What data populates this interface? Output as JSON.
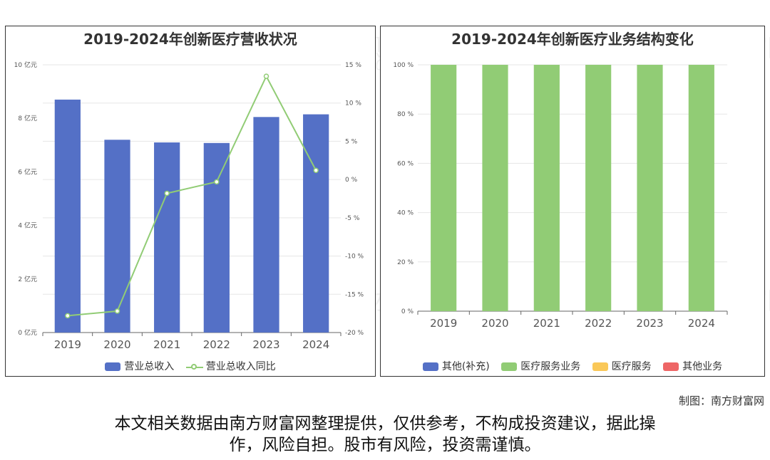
{
  "credit": "制图：南方财富网",
  "disclaimer": [
    "本文相关数据由南方财富网整理提供，仅供参考，不构成投资建议，据此操",
    "作，风险自担。股市有风险，投资需谨慎。"
  ],
  "watermark": {
    "cn": "南方财富网",
    "en": "southmoney.com"
  },
  "colors": {
    "blue": "#5470c6",
    "green": "#91cc75",
    "yellow": "#fac858",
    "red": "#ee6666"
  },
  "chart_data": [
    {
      "type": "bar",
      "title": "2019-2024年创新医疗营收状况",
      "categories": [
        "2019",
        "2020",
        "2021",
        "2022",
        "2023",
        "2024"
      ],
      "series": [
        {
          "name": "营业总收入",
          "type": "bar",
          "axis": "left",
          "values": [
            8.7,
            7.2,
            7.1,
            7.08,
            8.05,
            8.15
          ]
        },
        {
          "name": "营业总收入同比",
          "type": "line",
          "axis": "right",
          "values": [
            -17.8,
            -17.2,
            -1.8,
            -0.3,
            13.5,
            1.2
          ]
        }
      ],
      "y_left": {
        "ylim": [
          0,
          10
        ],
        "ticks": [
          "0 亿元",
          "2 亿元",
          "4 亿元",
          "6 亿元",
          "8 亿元",
          "10 亿元"
        ]
      },
      "y_right": {
        "ylim": [
          -20,
          15
        ],
        "ticks": [
          "-20 %",
          "-15 %",
          "-10 %",
          "-5 %",
          "0 %",
          "5 %",
          "10 %",
          "15 %"
        ]
      },
      "grid": true,
      "legend": "bottom"
    },
    {
      "type": "bar",
      "title": "2019-2024年创新医疗业务结构变化",
      "categories": [
        "2019",
        "2020",
        "2021",
        "2022",
        "2023",
        "2024"
      ],
      "stacked": true,
      "series": [
        {
          "name": "其他(补充)",
          "values": [
            0,
            0,
            0,
            0,
            0,
            0
          ]
        },
        {
          "name": "医疗服务业务",
          "values": [
            100,
            100,
            100,
            100,
            100,
            100
          ]
        },
        {
          "name": "医疗服务",
          "values": [
            0,
            0,
            0,
            0,
            0,
            0
          ]
        },
        {
          "name": "其他业务",
          "values": [
            0,
            0,
            0,
            0,
            0,
            0
          ]
        }
      ],
      "ylim": [
        0,
        100
      ],
      "ticks": [
        "0 %",
        "20 %",
        "40 %",
        "60 %",
        "80 %",
        "100 %"
      ],
      "grid": true,
      "legend": "bottom"
    }
  ]
}
